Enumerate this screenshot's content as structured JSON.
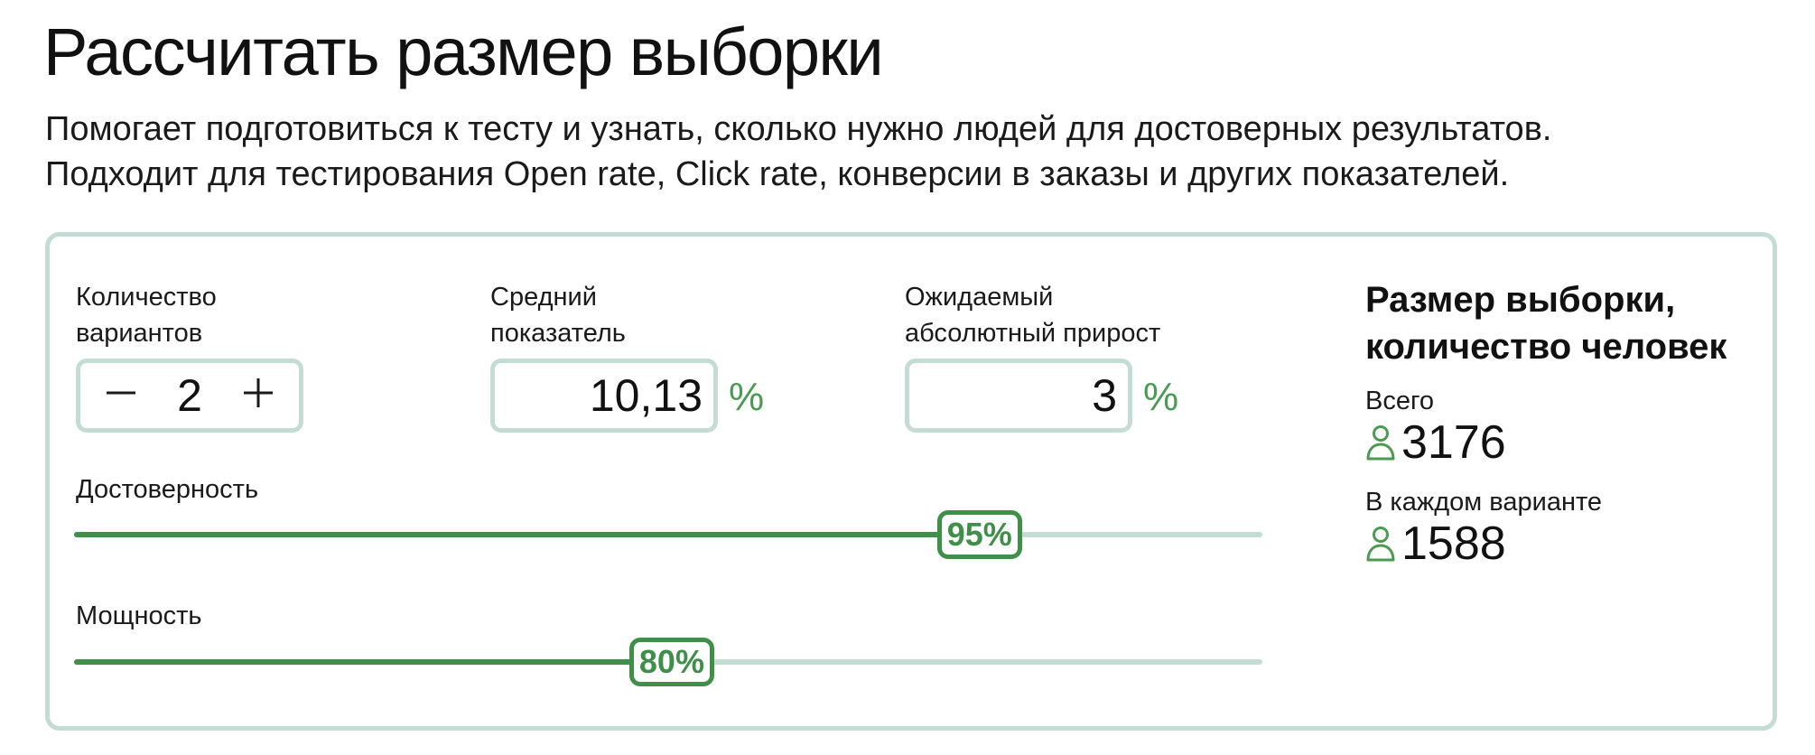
{
  "header": {
    "title": "Рассчитать размер выборки",
    "subtitle_line1": "Помогает подготовиться к тесту и узнать, сколько нужно людей для достоверных результатов.",
    "subtitle_line2": "Подходит для тестирования Open rate, Click rate, конверсии в заказы и других показателей."
  },
  "form": {
    "variants": {
      "label_line1": "Количество",
      "label_line2": "вариантов",
      "value": "2",
      "minus_icon": "minus-icon",
      "plus_icon": "plus-icon"
    },
    "average": {
      "label_line1": "Средний",
      "label_line2": "показатель",
      "value": "10,13",
      "unit": "%"
    },
    "uplift": {
      "label_line1": "Ожидаемый",
      "label_line2": "абсолютный прирост",
      "value": "3",
      "unit": "%"
    },
    "confidence": {
      "label": "Достоверность",
      "value_text": "95%",
      "value_fraction": 0.762
    },
    "power": {
      "label": "Мощность",
      "value_text": "80%",
      "value_fraction": 0.503
    }
  },
  "result": {
    "title_line1": "Размер выборки,",
    "title_line2": "количество человек",
    "total_label": "Всего",
    "total_value": "3176",
    "per_variant_label": "В каждом варианте",
    "per_variant_value": "1588",
    "icon": "person-icon"
  },
  "colors": {
    "accent": "#3f8f48",
    "border": "#c3dcd4",
    "text": "#111111"
  }
}
